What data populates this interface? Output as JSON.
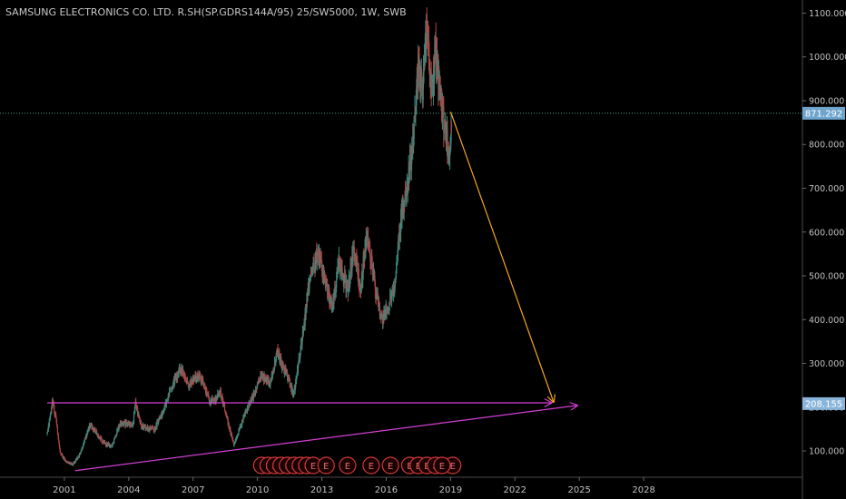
{
  "chart_data": {
    "type": "candlestick",
    "title": "SAMSUNG ELECTRONICS CO. LTD. R.SH(SP.GDRS144A/95) 25/SW5000, 1W, SWB",
    "x_ticks": [
      "2001",
      "2004",
      "2007",
      "2010",
      "2013",
      "2016",
      "2019",
      "2022",
      "2025",
      "2028"
    ],
    "y_ticks": [
      "100.000",
      "200.000",
      "300.000",
      "400.000",
      "500.000",
      "600.000",
      "700.000",
      "800.000",
      "900.000",
      "1000.000",
      "1100.000"
    ],
    "ylim": [
      40,
      1130
    ],
    "xlim": [
      1998.0,
      2035.4
    ],
    "series": [
      {
        "values": [
          {
            "x": 2000.2,
            "y": 140
          },
          {
            "x": 2000.45,
            "y": 210
          },
          {
            "x": 2000.6,
            "y": 180
          },
          {
            "x": 2000.8,
            "y": 95
          },
          {
            "x": 2001.1,
            "y": 75
          },
          {
            "x": 2001.4,
            "y": 70
          },
          {
            "x": 2001.7,
            "y": 90
          },
          {
            "x": 2002.2,
            "y": 160
          },
          {
            "x": 2002.8,
            "y": 120
          },
          {
            "x": 2003.2,
            "y": 110
          },
          {
            "x": 2003.6,
            "y": 165
          },
          {
            "x": 2004.2,
            "y": 160
          },
          {
            "x": 2004.3,
            "y": 210
          },
          {
            "x": 2004.6,
            "y": 155
          },
          {
            "x": 2005.2,
            "y": 150
          },
          {
            "x": 2005.6,
            "y": 190
          },
          {
            "x": 2006.0,
            "y": 245
          },
          {
            "x": 2006.4,
            "y": 290
          },
          {
            "x": 2006.8,
            "y": 250
          },
          {
            "x": 2007.3,
            "y": 275
          },
          {
            "x": 2007.8,
            "y": 210
          },
          {
            "x": 2008.3,
            "y": 230
          },
          {
            "x": 2008.7,
            "y": 150
          },
          {
            "x": 2008.9,
            "y": 115
          },
          {
            "x": 2009.5,
            "y": 195
          },
          {
            "x": 2009.8,
            "y": 225
          },
          {
            "x": 2010.2,
            "y": 275
          },
          {
            "x": 2010.6,
            "y": 250
          },
          {
            "x": 2010.9,
            "y": 325
          },
          {
            "x": 2011.3,
            "y": 280
          },
          {
            "x": 2011.7,
            "y": 230
          },
          {
            "x": 2012.1,
            "y": 360
          },
          {
            "x": 2012.4,
            "y": 480
          },
          {
            "x": 2012.8,
            "y": 555
          },
          {
            "x": 2013.2,
            "y": 480
          },
          {
            "x": 2013.5,
            "y": 430
          },
          {
            "x": 2013.8,
            "y": 530
          },
          {
            "x": 2014.2,
            "y": 470
          },
          {
            "x": 2014.5,
            "y": 560
          },
          {
            "x": 2014.8,
            "y": 470
          },
          {
            "x": 2015.1,
            "y": 600
          },
          {
            "x": 2015.5,
            "y": 470
          },
          {
            "x": 2015.8,
            "y": 400
          },
          {
            "x": 2016.1,
            "y": 430
          },
          {
            "x": 2016.4,
            "y": 480
          },
          {
            "x": 2016.6,
            "y": 600
          },
          {
            "x": 2016.9,
            "y": 690
          },
          {
            "x": 2017.2,
            "y": 780
          },
          {
            "x": 2017.5,
            "y": 980
          },
          {
            "x": 2017.7,
            "y": 920
          },
          {
            "x": 2017.9,
            "y": 1080
          },
          {
            "x": 2018.1,
            "y": 920
          },
          {
            "x": 2018.3,
            "y": 1010
          },
          {
            "x": 2018.6,
            "y": 880
          },
          {
            "x": 2018.8,
            "y": 820
          },
          {
            "x": 2018.95,
            "y": 760
          },
          {
            "x": 2019.05,
            "y": 871
          }
        ]
      }
    ],
    "price_lines": [
      {
        "label": "871.292",
        "value": 871.292,
        "color": "#6fa4cc"
      },
      {
        "label": "208.155",
        "value": 208.155,
        "color": "#8ab5da"
      }
    ],
    "drawings": [
      {
        "name": "support-line-horizontal",
        "color": "#d43fd4",
        "from": {
          "x": 2000.2,
          "y": 210
        },
        "to": {
          "x": 2023.7,
          "y": 210
        }
      },
      {
        "name": "support-line-rising",
        "color": "#d43fd4",
        "from": {
          "x": 2001.5,
          "y": 55
        },
        "to": {
          "x": 2024.9,
          "y": 204
        }
      },
      {
        "name": "projection-arrow",
        "color": "#f5a623",
        "from": {
          "x": 2019.0,
          "y": 875
        },
        "to": {
          "x": 2023.8,
          "y": 212
        }
      }
    ],
    "event_markers": {
      "label": "E",
      "color": "#d23a3a",
      "positions": [
        2010.2,
        2010.5,
        2010.8,
        2011.1,
        2011.4,
        2011.7,
        2012.0,
        2012.3,
        2012.6,
        2013.2,
        2014.2,
        2015.3,
        2016.2,
        2017.1,
        2017.5,
        2017.9,
        2018.3,
        2019.1,
        2018.6
      ]
    }
  }
}
